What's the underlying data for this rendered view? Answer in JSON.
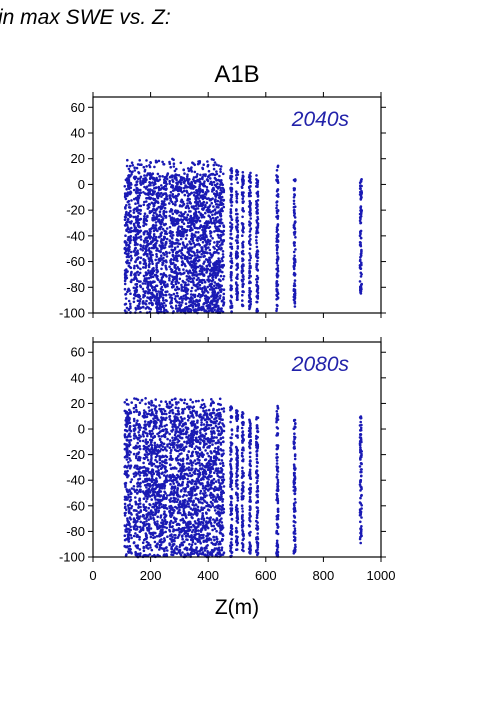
{
  "page": {
    "title": "in max SWE vs. Z:"
  },
  "chart_data": {
    "type": "scatter",
    "title": "A1B",
    "xlabel": "Z(m)",
    "ylabel": "",
    "xlim": [
      0,
      1000
    ],
    "ylim": [
      -100,
      68
    ],
    "xticks": [
      0,
      200,
      400,
      600,
      800,
      1000
    ],
    "yticks": [
      -100,
      -80,
      -60,
      -40,
      -20,
      0,
      20,
      40,
      60
    ],
    "point_color": "#1a1ab4",
    "label_color": "#2222aa",
    "panels": [
      {
        "label": "2040s",
        "x_range": [
          100,
          935
        ],
        "y_range": [
          -100,
          20
        ],
        "dense_band": {
          "x": [
            110,
            455
          ],
          "y": [
            -100,
            8
          ]
        },
        "gaps_x": [
          138,
          170,
          262
        ],
        "columns": [
          {
            "x": 480,
            "y": [
              -100,
              13
            ]
          },
          {
            "x": 500,
            "y": [
              -90,
              12
            ]
          },
          {
            "x": 520,
            "y": [
              -95,
              12
            ]
          },
          {
            "x": 545,
            "y": [
              -98,
              10
            ]
          },
          {
            "x": 570,
            "y": [
              -100,
              8
            ]
          },
          {
            "x": 640,
            "y": [
              -100,
              16
            ]
          },
          {
            "x": 700,
            "y": [
              -95,
              5
            ]
          },
          {
            "x": 930,
            "y": [
              -85,
              8
            ]
          }
        ]
      },
      {
        "label": "2080s",
        "x_range": [
          100,
          935
        ],
        "y_range": [
          -100,
          24
        ],
        "dense_band": {
          "x": [
            110,
            455
          ],
          "y": [
            -100,
            15
          ]
        },
        "gaps_x": [
          138,
          170,
          262
        ],
        "columns": [
          {
            "x": 480,
            "y": [
              -100,
              18
            ]
          },
          {
            "x": 500,
            "y": [
              -95,
              15
            ]
          },
          {
            "x": 520,
            "y": [
              -98,
              14
            ]
          },
          {
            "x": 545,
            "y": [
              -98,
              10
            ]
          },
          {
            "x": 570,
            "y": [
              -100,
              10
            ]
          },
          {
            "x": 640,
            "y": [
              -100,
              18
            ]
          },
          {
            "x": 700,
            "y": [
              -98,
              8
            ]
          },
          {
            "x": 930,
            "y": [
              -92,
              10
            ]
          }
        ]
      }
    ]
  }
}
